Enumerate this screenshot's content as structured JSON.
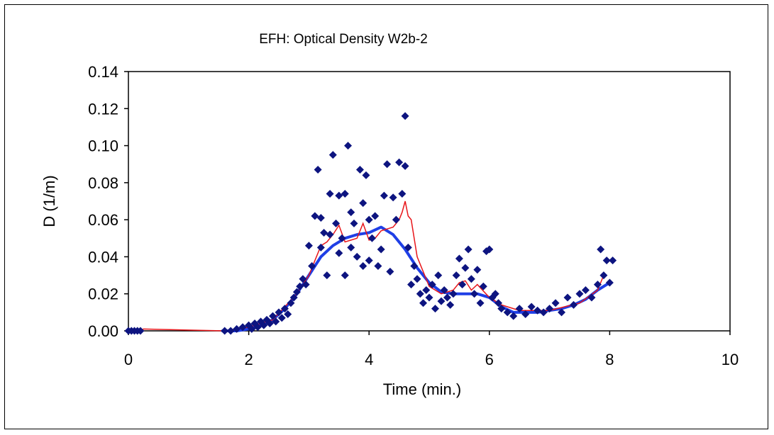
{
  "chart_data": {
    "type": "scatter",
    "title": "EFH: Optical Density W2b-2",
    "xlabel": "Time (min.)",
    "ylabel": "D (1/m)",
    "xlim": [
      0,
      10
    ],
    "ylim": [
      0,
      0.14
    ],
    "x_ticks": [
      "0",
      "2",
      "4",
      "6",
      "8",
      "10"
    ],
    "y_ticks": [
      "0.00",
      "0.02",
      "0.04",
      "0.06",
      "0.08",
      "0.10",
      "0.12",
      "0.14"
    ],
    "grid": false,
    "legend": "none",
    "colors": {
      "points": "#0d1480",
      "smooth": "#1f3fe6",
      "raw": "#e8161a"
    },
    "series": [
      {
        "type": "scatter",
        "x": [
          0.0,
          0.05,
          0.1,
          0.15,
          0.2,
          1.6,
          1.7,
          1.8,
          1.9,
          2.0,
          2.05,
          2.1,
          2.15,
          2.2,
          2.25,
          2.3,
          2.35,
          2.4,
          2.45,
          2.5,
          2.55,
          2.6,
          2.65,
          2.7,
          2.75,
          2.8,
          2.85,
          2.9,
          2.95,
          3.0,
          3.05,
          3.1,
          3.15,
          3.2,
          3.2,
          3.25,
          3.3,
          3.35,
          3.35,
          3.4,
          3.45,
          3.5,
          3.5,
          3.55,
          3.6,
          3.6,
          3.65,
          3.7,
          3.7,
          3.75,
          3.8,
          3.85,
          3.9,
          3.9,
          3.95,
          4.0,
          4.0,
          4.05,
          4.1,
          4.15,
          4.2,
          4.25,
          4.3,
          4.35,
          4.4,
          4.45,
          4.5,
          4.55,
          4.6,
          4.6,
          4.65,
          4.7,
          4.75,
          4.8,
          4.85,
          4.9,
          4.95,
          5.0,
          5.05,
          5.1,
          5.15,
          5.2,
          5.25,
          5.3,
          5.35,
          5.4,
          5.45,
          5.5,
          5.55,
          5.6,
          5.65,
          5.7,
          5.75,
          5.8,
          5.85,
          5.9,
          5.95,
          6.0,
          6.05,
          6.1,
          6.15,
          6.2,
          6.3,
          6.4,
          6.5,
          6.6,
          6.7,
          6.8,
          6.9,
          7.0,
          7.1,
          7.2,
          7.3,
          7.4,
          7.5,
          7.6,
          7.7,
          7.8,
          7.85,
          7.9,
          7.95,
          8.0,
          8.05
        ],
        "y": [
          0.0,
          0.0,
          0.0,
          0.0,
          0.0,
          0.0,
          0.0,
          0.001,
          0.002,
          0.003,
          0.001,
          0.004,
          0.002,
          0.005,
          0.003,
          0.006,
          0.004,
          0.008,
          0.005,
          0.01,
          0.007,
          0.012,
          0.009,
          0.015,
          0.018,
          0.021,
          0.024,
          0.028,
          0.025,
          0.046,
          0.035,
          0.062,
          0.087,
          0.045,
          0.061,
          0.053,
          0.03,
          0.074,
          0.052,
          0.095,
          0.058,
          0.073,
          0.042,
          0.05,
          0.074,
          0.03,
          0.1,
          0.064,
          0.045,
          0.058,
          0.04,
          0.087,
          0.069,
          0.035,
          0.084,
          0.06,
          0.038,
          0.05,
          0.062,
          0.035,
          0.044,
          0.073,
          0.09,
          0.032,
          0.072,
          0.06,
          0.091,
          0.074,
          0.116,
          0.089,
          0.045,
          0.025,
          0.035,
          0.028,
          0.02,
          0.015,
          0.022,
          0.018,
          0.025,
          0.012,
          0.03,
          0.016,
          0.022,
          0.018,
          0.014,
          0.02,
          0.03,
          0.039,
          0.025,
          0.034,
          0.044,
          0.028,
          0.02,
          0.033,
          0.015,
          0.024,
          0.043,
          0.044,
          0.018,
          0.02,
          0.015,
          0.012,
          0.01,
          0.008,
          0.012,
          0.009,
          0.013,
          0.011,
          0.01,
          0.012,
          0.015,
          0.01,
          0.018,
          0.014,
          0.02,
          0.022,
          0.018,
          0.025,
          0.044,
          0.03,
          0.038,
          0.026,
          0.038
        ]
      },
      {
        "type": "line",
        "x": [
          1.55,
          1.8,
          2.0,
          2.2,
          2.4,
          2.6,
          2.8,
          3.0,
          3.2,
          3.4,
          3.6,
          3.8,
          4.0,
          4.2,
          4.4,
          4.6,
          4.8,
          5.0,
          5.2,
          5.4,
          5.6,
          5.8,
          6.0,
          6.2,
          6.4,
          6.6,
          6.8,
          7.0,
          7.2,
          7.4,
          7.6,
          7.8,
          8.0
        ],
        "y": [
          0.0,
          0.0,
          0.001,
          0.003,
          0.006,
          0.012,
          0.02,
          0.03,
          0.04,
          0.046,
          0.05,
          0.052,
          0.053,
          0.056,
          0.052,
          0.044,
          0.034,
          0.026,
          0.021,
          0.02,
          0.02,
          0.02,
          0.018,
          0.013,
          0.01,
          0.01,
          0.01,
          0.011,
          0.012,
          0.014,
          0.017,
          0.022,
          0.026
        ]
      },
      {
        "type": "line",
        "x": [
          0.0,
          0.2,
          0.25,
          1.6,
          2.0,
          2.4,
          2.8,
          3.0,
          3.1,
          3.2,
          3.3,
          3.4,
          3.5,
          3.6,
          3.7,
          3.8,
          3.9,
          4.0,
          4.1,
          4.2,
          4.3,
          4.4,
          4.5,
          4.55,
          4.6,
          4.65,
          4.7,
          4.8,
          5.0,
          5.2,
          5.4,
          5.5,
          5.6,
          5.7,
          5.8,
          6.0,
          6.2,
          6.5,
          7.0,
          7.5,
          7.8,
          7.9
        ],
        "y": [
          0.0,
          0.0,
          0.001,
          0.0,
          0.002,
          0.006,
          0.02,
          0.03,
          0.038,
          0.046,
          0.048,
          0.052,
          0.057,
          0.048,
          0.049,
          0.05,
          0.058,
          0.049,
          0.05,
          0.054,
          0.055,
          0.056,
          0.06,
          0.064,
          0.07,
          0.062,
          0.06,
          0.04,
          0.024,
          0.02,
          0.022,
          0.026,
          0.027,
          0.022,
          0.025,
          0.018,
          0.014,
          0.011,
          0.011,
          0.015,
          0.022,
          0.03
        ]
      }
    ]
  }
}
